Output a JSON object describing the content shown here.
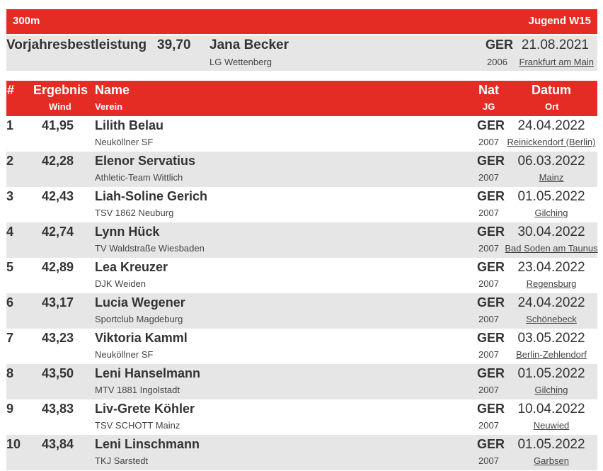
{
  "event": {
    "name": "300m",
    "class": "Jugend W15"
  },
  "previous_best": {
    "label": "Vorjahresbestleistung",
    "result": "39,70",
    "name": "Jana Becker",
    "club": "LG Wettenberg",
    "nat": "GER",
    "year": "2006",
    "date": "21.08.2021",
    "place": "Frankfurt am Main"
  },
  "table_header": {
    "rank": "#",
    "result": "Ergebnis",
    "wind": "Wind",
    "name": "Name",
    "club": "Verein",
    "nat": "Nat",
    "year": "JG",
    "date": "Datum",
    "place": "Ort"
  },
  "rows": [
    {
      "rank": "1",
      "result": "41,95",
      "name": "Lilith Belau",
      "club": "Neuköllner SF",
      "nat": "GER",
      "year": "2007",
      "date": "24.04.2022",
      "place": "Reinickendorf (Berlin)"
    },
    {
      "rank": "2",
      "result": "42,28",
      "name": "Elenor Servatius",
      "club": "Athletic-Team Wittlich",
      "nat": "GER",
      "year": "2007",
      "date": "06.03.2022",
      "place": "Mainz"
    },
    {
      "rank": "3",
      "result": "42,43",
      "name": "Liah-Soline Gerich",
      "club": "TSV 1862 Neuburg",
      "nat": "GER",
      "year": "2007",
      "date": "01.05.2022",
      "place": "Gilching"
    },
    {
      "rank": "4",
      "result": "42,74",
      "name": "Lynn Hück",
      "club": "TV Waldstraße Wiesbaden",
      "nat": "GER",
      "year": "2007",
      "date": "30.04.2022",
      "place": "Bad Soden am Taunus"
    },
    {
      "rank": "5",
      "result": "42,89",
      "name": "Lea Kreuzer",
      "club": "DJK Weiden",
      "nat": "GER",
      "year": "2007",
      "date": "23.04.2022",
      "place": "Regensburg"
    },
    {
      "rank": "6",
      "result": "43,17",
      "name": "Lucia Wegener",
      "club": "Sportclub Magdeburg",
      "nat": "GER",
      "year": "2007",
      "date": "24.04.2022",
      "place": "Schönebeck"
    },
    {
      "rank": "7",
      "result": "43,23",
      "name": "Viktoria Kamml",
      "club": "Neuköllner SF",
      "nat": "GER",
      "year": "2007",
      "date": "03.05.2022",
      "place": "Berlin-Zehlendorf"
    },
    {
      "rank": "8",
      "result": "43,50",
      "name": "Leni Hanselmann",
      "club": "MTV 1881 Ingolstadt",
      "nat": "GER",
      "year": "2007",
      "date": "01.05.2022",
      "place": "Gilching"
    },
    {
      "rank": "9",
      "result": "43,83",
      "name": "Liv-Grete Köhler",
      "club": "TSV SCHOTT Mainz",
      "nat": "GER",
      "year": "2007",
      "date": "10.04.2022",
      "place": "Neuwied"
    },
    {
      "rank": "10",
      "result": "43,84",
      "name": "Leni Linschmann",
      "club": "TKJ Sarstedt",
      "nat": "GER",
      "year": "2007",
      "date": "01.05.2022",
      "place": "Garbsen"
    }
  ],
  "colors": {
    "header_red": "#e52c24",
    "row_alt": "#e6e6e6",
    "text": "#333333"
  }
}
